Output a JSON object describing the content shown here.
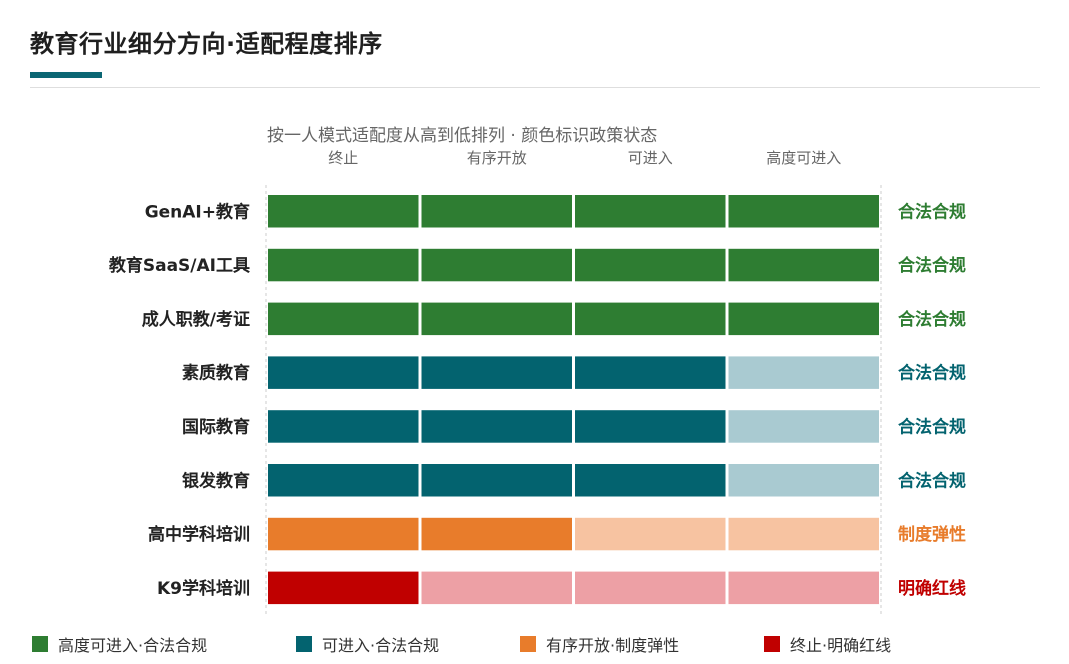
{
  "header": {
    "title": "教育行业细分方向·适配程度排序"
  },
  "chart_data": {
    "type": "bar",
    "subtitle": "按一人模式适配度从高到低排列 · 颜色标识政策状态",
    "columns": [
      "终止",
      "有序开放",
      "可进入",
      "高度可进入"
    ],
    "rows": [
      {
        "label": "GenAI+教育",
        "level": 4,
        "status": "合法合规",
        "color": "#2e7d32",
        "light": "#2e7d32"
      },
      {
        "label": "教育SaaS/AI工具",
        "level": 4,
        "status": "合法合规",
        "color": "#2e7d32",
        "light": "#2e7d32"
      },
      {
        "label": "成人职教/考证",
        "level": 4,
        "status": "合法合规",
        "color": "#2e7d32",
        "light": "#2e7d32"
      },
      {
        "label": "素质教育",
        "level": 3,
        "status": "合法合规",
        "color": "#03636f",
        "light": "#a9cad1"
      },
      {
        "label": "国际教育",
        "level": 3,
        "status": "合法合规",
        "color": "#03636f",
        "light": "#a9cad1"
      },
      {
        "label": "银发教育",
        "level": 3,
        "status": "合法合规",
        "color": "#03636f",
        "light": "#a9cad1"
      },
      {
        "label": "高中学科培训",
        "level": 2,
        "status": "制度弹性",
        "color": "#e87c2b",
        "light": "#f7c3a1"
      },
      {
        "label": "K9学科培训",
        "level": 1,
        "status": "明确红线",
        "color": "#c00000",
        "light": "#eda0a5"
      }
    ],
    "legend": [
      {
        "label": "高度可进入·合法合规",
        "color": "#2e7d32"
      },
      {
        "label": "可进入·合法合规",
        "color": "#03636f"
      },
      {
        "label": "有序开放·制度弹性",
        "color": "#e87c2b"
      },
      {
        "label": "终止·明确红线",
        "color": "#c00000"
      }
    ]
  }
}
